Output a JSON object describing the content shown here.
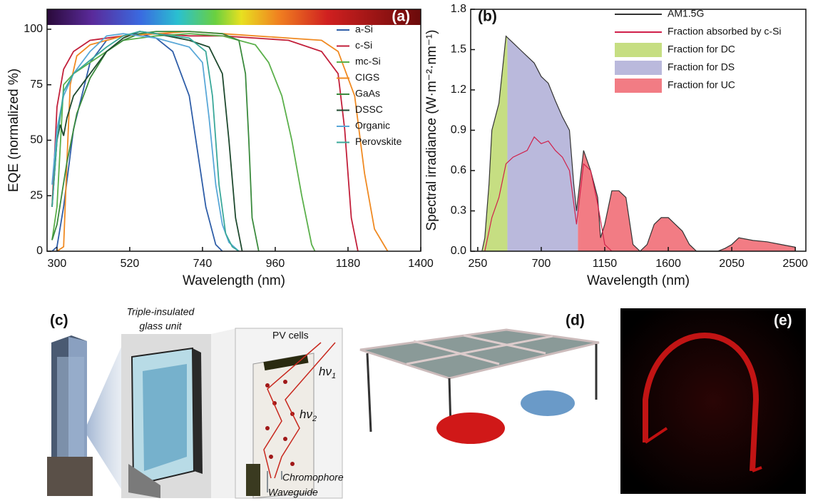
{
  "chart_data": [
    {
      "type": "line",
      "panel_label": "(a)",
      "x_label": "Wavelength (nm)",
      "y_label": "EQE (normalized %)",
      "xlim": [
        270,
        1400
      ],
      "ylim": [
        0,
        109
      ],
      "xticks": [
        300,
        520,
        740,
        960,
        1180,
        1400
      ],
      "yticks": [
        0,
        25,
        50,
        75,
        100
      ],
      "legend": "upper right",
      "series": [
        {
          "name": "a-Si",
          "color": "#2f5ea8",
          "x": [
            285,
            300,
            320,
            350,
            400,
            450,
            500,
            550,
            600,
            650,
            700,
            720,
            750,
            780,
            800
          ],
          "values": [
            0,
            2,
            20,
            55,
            85,
            95,
            97,
            98,
            96,
            90,
            70,
            50,
            20,
            3,
            0
          ]
        },
        {
          "name": "c-Si",
          "color": "#c21f3a",
          "x": [
            285,
            300,
            320,
            350,
            400,
            500,
            600,
            700,
            800,
            900,
            1000,
            1100,
            1150,
            1170,
            1190,
            1210
          ],
          "values": [
            20,
            65,
            82,
            90,
            95,
            97,
            98,
            97,
            97,
            96,
            95,
            90,
            80,
            55,
            15,
            0
          ]
        },
        {
          "name": "mc-Si",
          "color": "#5bb04b",
          "x": [
            285,
            300,
            320,
            350,
            400,
            500,
            600,
            700,
            800,
            900,
            940,
            980,
            1010,
            1040,
            1070,
            1080
          ],
          "values": [
            5,
            20,
            75,
            80,
            85,
            95,
            97,
            98,
            97,
            93,
            85,
            70,
            50,
            25,
            3,
            0
          ]
        },
        {
          "name": "CIGS",
          "color": "#f08a22",
          "x": [
            300,
            320,
            330,
            340,
            360,
            400,
            500,
            600,
            700,
            800,
            900,
            1000,
            1100,
            1150,
            1200,
            1230,
            1260,
            1300
          ],
          "values": [
            0,
            2,
            40,
            75,
            88,
            93,
            97,
            98,
            99,
            98,
            97,
            96,
            95,
            90,
            70,
            35,
            10,
            0
          ]
        },
        {
          "name": "GaAs",
          "color": "#3a8a3c",
          "x": [
            285,
            300,
            330,
            360,
            400,
            450,
            500,
            550,
            600,
            700,
            800,
            850,
            870,
            880,
            890,
            910
          ],
          "values": [
            5,
            12,
            40,
            62,
            78,
            90,
            95,
            98,
            99,
            99,
            98,
            95,
            80,
            50,
            15,
            0
          ]
        },
        {
          "name": "DSSC",
          "color": "#1f4a2f",
          "x": [
            285,
            300,
            310,
            320,
            330,
            350,
            400,
            450,
            500,
            550,
            600,
            700,
            760,
            800,
            820,
            840,
            860
          ],
          "values": [
            20,
            50,
            57,
            52,
            60,
            70,
            80,
            90,
            96,
            99,
            98,
            95,
            92,
            80,
            50,
            15,
            0
          ]
        },
        {
          "name": "Organic",
          "color": "#5aa8d8",
          "x": [
            285,
            300,
            320,
            350,
            400,
            450,
            500,
            550,
            600,
            700,
            740,
            760,
            780,
            800,
            820,
            850
          ],
          "values": [
            30,
            55,
            70,
            80,
            90,
            97,
            98,
            97,
            96,
            92,
            85,
            60,
            30,
            12,
            4,
            0
          ]
        },
        {
          "name": "Perovskite",
          "color": "#3aa89a",
          "x": [
            285,
            300,
            320,
            350,
            400,
            450,
            500,
            550,
            600,
            700,
            750,
            770,
            790,
            810,
            830,
            850
          ],
          "values": [
            20,
            50,
            72,
            80,
            86,
            92,
            97,
            99,
            98,
            96,
            90,
            70,
            30,
            8,
            2,
            0
          ]
        }
      ]
    },
    {
      "type": "line",
      "panel_label": "(b)",
      "x_label": "Wavelength (nm)",
      "y_label": "Spectral irradiance (W·m⁻²·nm⁻¹)",
      "xlim": [
        200,
        2575
      ],
      "ylim": [
        0,
        1.8
      ],
      "xticks": [
        250,
        700,
        1150,
        1600,
        2050,
        2500
      ],
      "yticks": [
        {
          "value": 0,
          "label": "0.0"
        },
        0.3,
        0.6,
        0.9,
        1.2,
        1.5,
        1.8
      ],
      "legend": "upper right",
      "series": [
        {
          "name": "AM1.5G",
          "color": "#333333",
          "x": [
            280,
            300,
            330,
            350,
            400,
            450,
            500,
            550,
            600,
            650,
            700,
            750,
            800,
            850,
            900,
            930,
            950,
            1000,
            1050,
            1100,
            1120,
            1150,
            1200,
            1250,
            1300,
            1350,
            1400,
            1450,
            1500,
            1550,
            1600,
            1650,
            1700,
            1750,
            1800,
            1850,
            1950,
            2000,
            2050,
            2100,
            2200,
            2300,
            2400,
            2500
          ],
          "values": [
            0,
            0.1,
            0.5,
            0.9,
            1.1,
            1.6,
            1.55,
            1.5,
            1.45,
            1.4,
            1.3,
            1.25,
            1.12,
            1.0,
            0.9,
            0.5,
            0.3,
            0.75,
            0.6,
            0.4,
            0.1,
            0.2,
            0.45,
            0.45,
            0.4,
            0.05,
            0,
            0.05,
            0.2,
            0.25,
            0.25,
            0.2,
            0.15,
            0.05,
            0,
            0,
            0,
            0.02,
            0.05,
            0.1,
            0.08,
            0.07,
            0.05,
            0.03
          ]
        },
        {
          "name": "Fraction absorbed by c-Si",
          "color": "#d0204a",
          "x": [
            300,
            350,
            400,
            450,
            500,
            600,
            650,
            700,
            750,
            800,
            850,
            900,
            950,
            1000,
            1050,
            1100,
            1150,
            1200
          ],
          "values": [
            0,
            0.25,
            0.4,
            0.65,
            0.7,
            0.75,
            0.85,
            0.8,
            0.82,
            0.75,
            0.7,
            0.6,
            0.2,
            0.65,
            0.6,
            0.35,
            0.05,
            0
          ]
        }
      ],
      "fills": [
        {
          "name": "Fraction for DC",
          "color": "#c6de82",
          "from": 280,
          "to": 460
        },
        {
          "name": "Fraction for DS",
          "color": "#bab9dc",
          "from": 460,
          "to": 960
        },
        {
          "name": "Fraction for UC",
          "color": "#f27c84",
          "from": 960,
          "to": 2500
        }
      ]
    }
  ],
  "illustrations": {
    "c": {
      "label": "(c)",
      "glass_unit": [
        "Triple-insulated",
        "glass unit"
      ],
      "pv_cells": "PV cells",
      "hv1": {
        "symbol": "hν",
        "sub": "1"
      },
      "hv2": {
        "symbol": "hν",
        "sub": "2"
      },
      "chromophore": "Chromophore",
      "waveguide": "Waveguide"
    },
    "d": {
      "label": "(d)"
    },
    "e": {
      "label": "(e)"
    }
  }
}
